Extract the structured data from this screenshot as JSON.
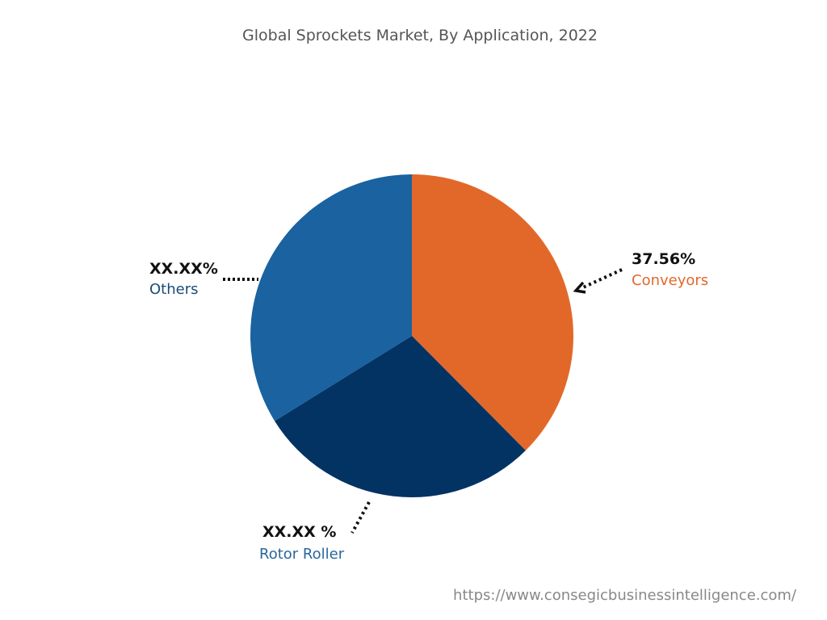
{
  "chart_data": {
    "type": "pie",
    "title": "Global Sprockets Market, By Application, 2022",
    "slices": [
      {
        "name": "Conveyors",
        "value": 37.56,
        "label": "37.56%",
        "color": "#E2682A",
        "label_color": "#E2682A"
      },
      {
        "name": "Rotor Roller",
        "value": 28.6,
        "label": "XX.XX %",
        "color": "#033363",
        "label_color": "#2A679C"
      },
      {
        "name": "Others",
        "value": 33.84,
        "label": "XX.XX%",
        "color": "#1A62A0",
        "label_color": "#1C4B78"
      }
    ],
    "start_angle": "top",
    "direction": "clockwise",
    "legend": "none"
  },
  "footer": {
    "url": "https://www.consegicbusinessintelligence.com/"
  }
}
